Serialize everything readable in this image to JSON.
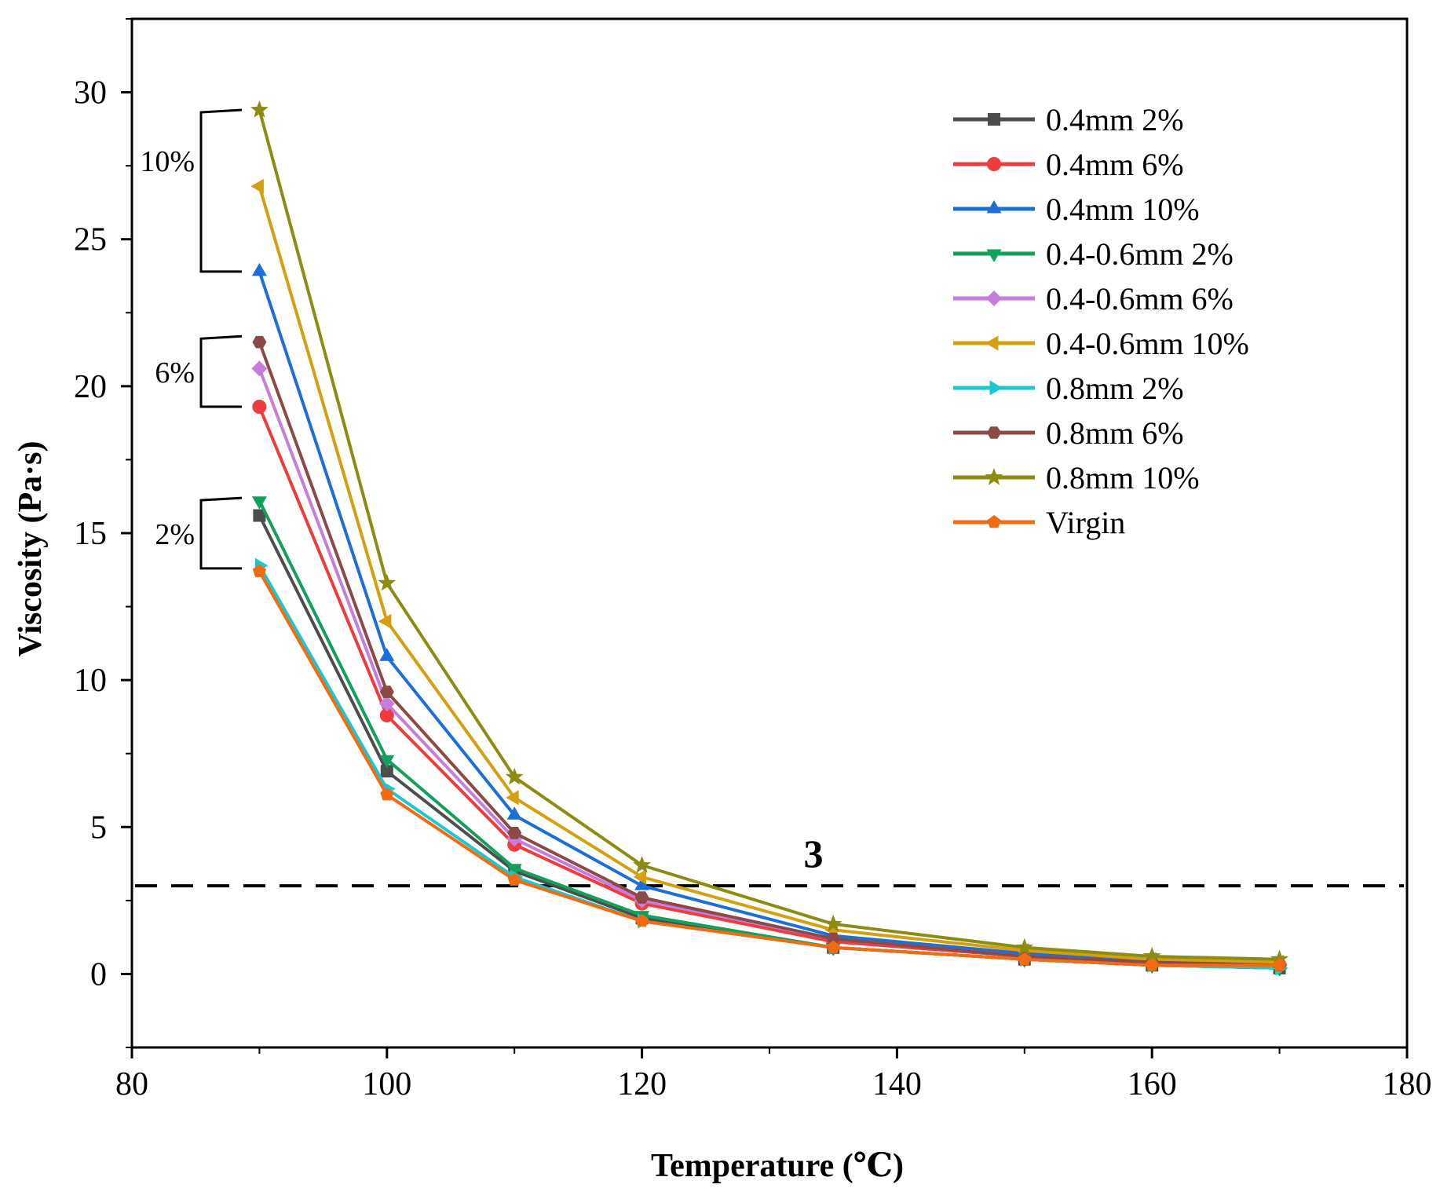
{
  "chart_data": {
    "type": "line",
    "xlabel": "Temperature (℃)",
    "ylabel": "Viscosity (Pa·s)",
    "xlim": [
      80,
      180
    ],
    "ylim": [
      -2.5,
      32.5
    ],
    "x_ticks": [
      80,
      100,
      120,
      140,
      160,
      180
    ],
    "y_ticks": [
      0,
      5,
      10,
      15,
      20,
      25,
      30
    ],
    "x_tick_labels": [
      "80",
      "100",
      "120",
      "140",
      "160",
      "180"
    ],
    "y_tick_labels": [
      "0",
      "5",
      "10",
      "15",
      "20",
      "25",
      "30"
    ],
    "grid": false,
    "legend_position": "top-right",
    "x": [
      90,
      100,
      110,
      120,
      135,
      150,
      160,
      170
    ],
    "series": [
      {
        "name": "0.4mm 2%",
        "color": "#4d4d4d",
        "marker": "square",
        "values": [
          15.6,
          6.9,
          3.5,
          1.9,
          0.9,
          0.5,
          0.3,
          0.2
        ]
      },
      {
        "name": "0.4mm 6%",
        "color": "#ee3b3b",
        "marker": "circle",
        "values": [
          19.3,
          8.8,
          4.4,
          2.4,
          1.1,
          0.6,
          0.4,
          0.3
        ]
      },
      {
        "name": "0.4mm 10%",
        "color": "#1c6fd6",
        "marker": "triangle-up",
        "values": [
          23.9,
          10.8,
          5.4,
          3.0,
          1.3,
          0.7,
          0.4,
          0.3
        ]
      },
      {
        "name": "0.4-0.6mm 2%",
        "color": "#12a05a",
        "marker": "triangle-down",
        "values": [
          16.1,
          7.3,
          3.6,
          2.0,
          0.9,
          0.5,
          0.3,
          0.2
        ]
      },
      {
        "name": "0.4-0.6mm 6%",
        "color": "#c77ddb",
        "marker": "diamond",
        "values": [
          20.6,
          9.2,
          4.6,
          2.5,
          1.2,
          0.6,
          0.4,
          0.3
        ]
      },
      {
        "name": "0.4-0.6mm 10%",
        "color": "#d4a010",
        "marker": "triangle-left",
        "values": [
          26.8,
          12.0,
          6.0,
          3.3,
          1.5,
          0.8,
          0.5,
          0.4
        ]
      },
      {
        "name": "0.8mm 2%",
        "color": "#19c9d1",
        "marker": "triangle-right",
        "values": [
          13.9,
          6.3,
          3.3,
          1.8,
          0.9,
          0.5,
          0.3,
          0.2
        ]
      },
      {
        "name": "0.8mm 6%",
        "color": "#8b4a45",
        "marker": "hexagon",
        "values": [
          21.5,
          9.6,
          4.8,
          2.6,
          1.2,
          0.6,
          0.4,
          0.3
        ]
      },
      {
        "name": "0.8mm 10%",
        "color": "#8c8c12",
        "marker": "star",
        "values": [
          29.4,
          13.3,
          6.7,
          3.7,
          1.7,
          0.9,
          0.6,
          0.5
        ]
      },
      {
        "name": "Virgin",
        "color": "#f26b12",
        "marker": "pentagon",
        "values": [
          13.7,
          6.1,
          3.2,
          1.8,
          0.9,
          0.5,
          0.3,
          0.3
        ]
      }
    ],
    "reference_line": {
      "y": 3,
      "label": "3",
      "style": "dashed"
    },
    "brackets": [
      {
        "label": "10%",
        "y_top": 29.4,
        "y_bottom": 23.9
      },
      {
        "label": "6%",
        "y_top": 21.7,
        "y_bottom": 19.3
      },
      {
        "label": "2%",
        "y_top": 16.2,
        "y_bottom": 13.8
      }
    ]
  }
}
